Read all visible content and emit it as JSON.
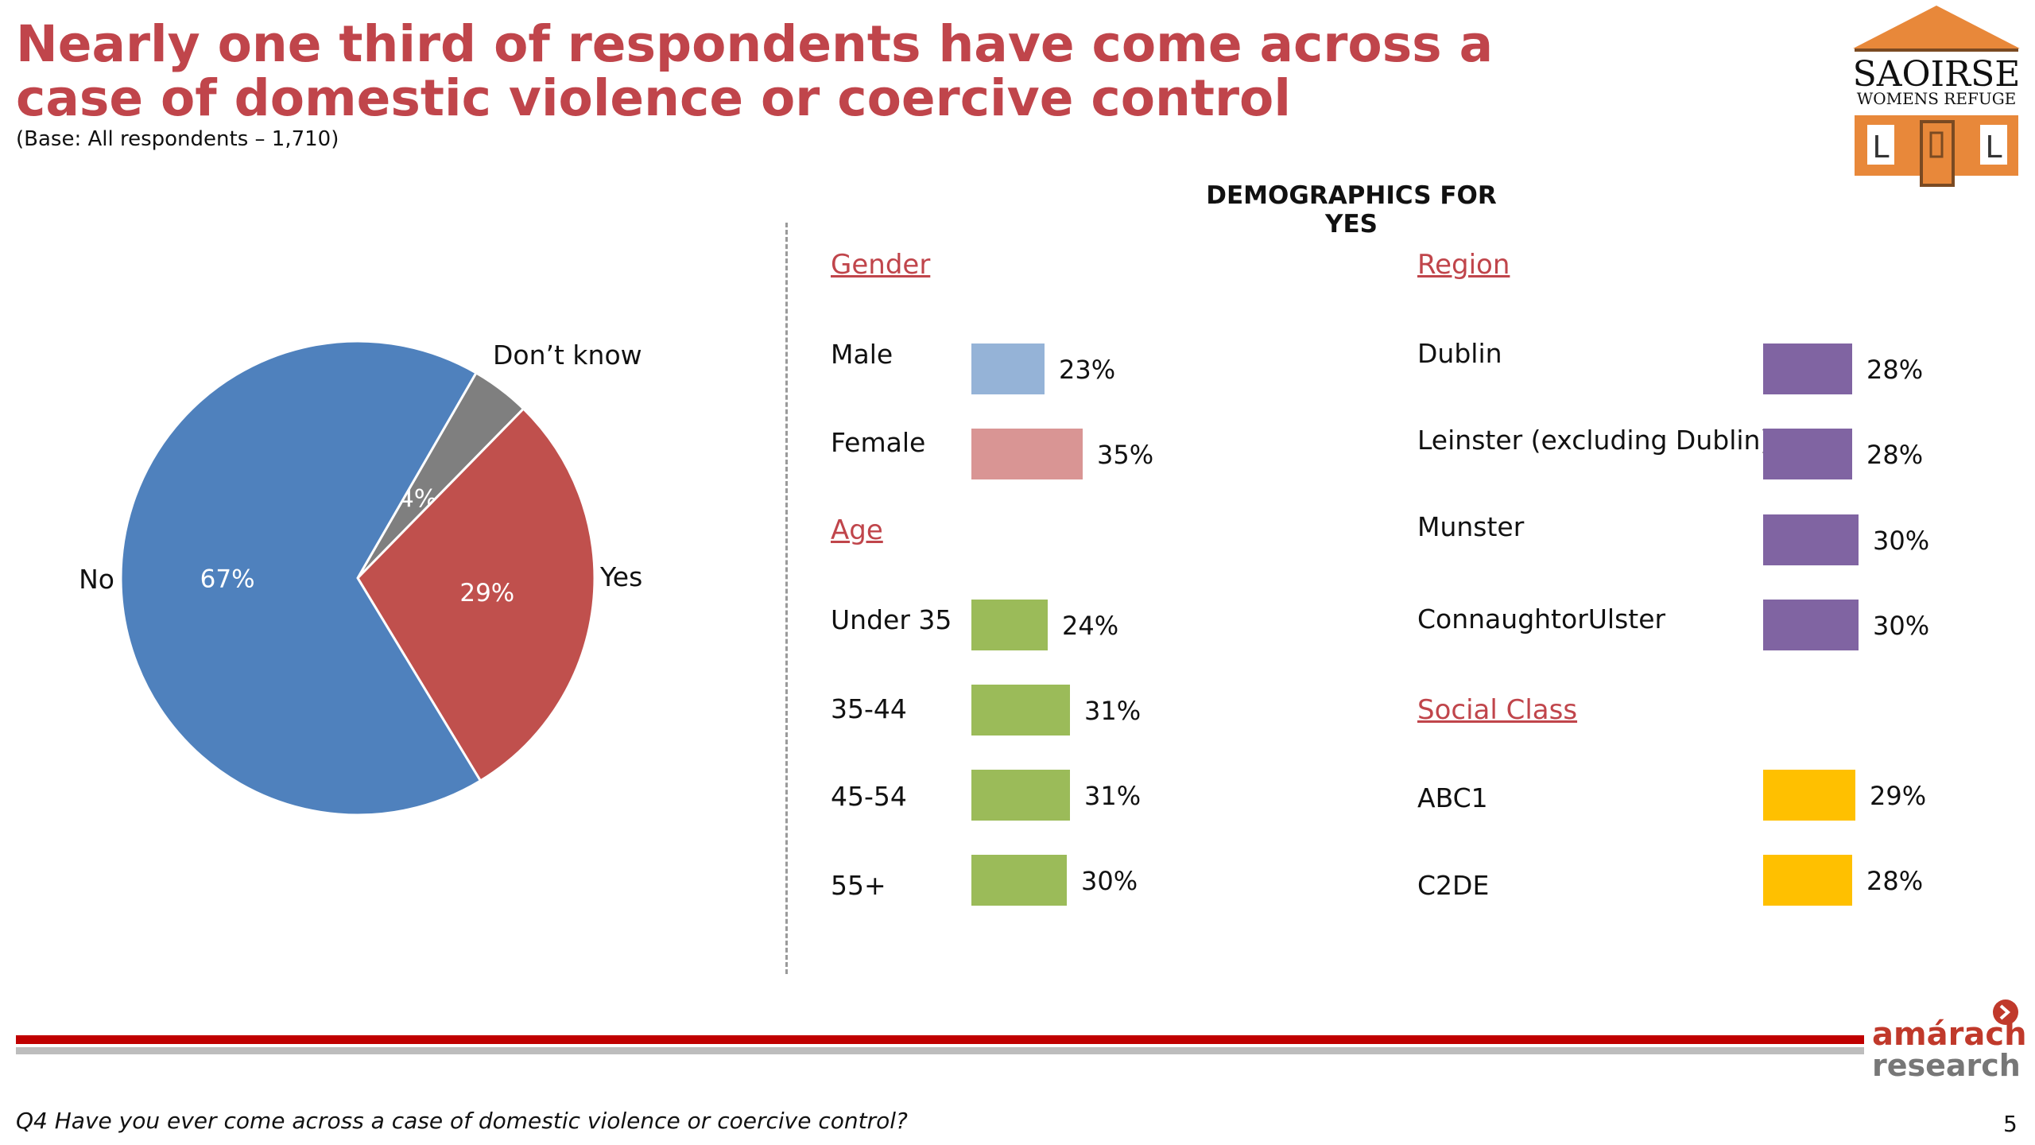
{
  "title": "Nearly one third of respondents have come across a case of domestic violence or coercive control",
  "base_note": "(Base: All respondents – 1,710)",
  "demographics_title": "DEMOGRAPHICS FOR YES",
  "footnote": "Q4 Have you ever come across a case of domestic violence or coercive control?",
  "page_number": "5",
  "logo": {
    "name": "SAOIRSE",
    "subtitle": "WOMENS REFUGE",
    "colors": {
      "orange": "#e8883a",
      "brown": "#7a4a22"
    }
  },
  "brand": {
    "line1": "amárach",
    "line2": "research"
  },
  "colors": {
    "title": "#c0454b",
    "pie_no": "#4f81bd",
    "pie_dontknow": "#7f7f7f",
    "pie_yes": "#c0504d",
    "male": "#95b3d7",
    "female": "#d99594",
    "age": "#9bbb59",
    "region": "#8064a2",
    "social": "#ffc000",
    "footer_red": "#c00000",
    "footer_grey": "#bdbdbd"
  },
  "chart_data": [
    {
      "type": "pie",
      "slices": [
        {
          "label": "No",
          "value": 67,
          "display": "67%"
        },
        {
          "label": "Yes",
          "value": 29,
          "display": "29%"
        },
        {
          "label": "Don’t know",
          "value": 4,
          "display": "4%"
        }
      ]
    },
    {
      "type": "bar",
      "title": "DEMOGRAPHICS FOR YES",
      "groups": [
        {
          "name": "Gender",
          "items": [
            {
              "label": "Male",
              "value": 23,
              "display": "23%"
            },
            {
              "label": "Female",
              "value": 35,
              "display": "35%"
            }
          ]
        },
        {
          "name": "Age",
          "items": [
            {
              "label": "Under 35",
              "value": 24,
              "display": "24%"
            },
            {
              "label": "35-44",
              "value": 31,
              "display": "31%"
            },
            {
              "label": "45-54",
              "value": 31,
              "display": "31%"
            },
            {
              "label": "55+",
              "value": 30,
              "display": "30%"
            }
          ]
        },
        {
          "name": "Region",
          "items": [
            {
              "label": "Dublin",
              "value": 28,
              "display": "28%"
            },
            {
              "label": "Leinster (excluding Dublin)",
              "value": 28,
              "display": "28%"
            },
            {
              "label": "Munster",
              "value": 30,
              "display": "30%"
            },
            {
              "label": "ConnaughtorUlster",
              "value": 30,
              "display": "30%"
            }
          ]
        },
        {
          "name": "Social Class",
          "items": [
            {
              "label": "ABC1",
              "value": 29,
              "display": "29%"
            },
            {
              "label": "C2DE",
              "value": 28,
              "display": "28%"
            }
          ]
        }
      ]
    }
  ]
}
